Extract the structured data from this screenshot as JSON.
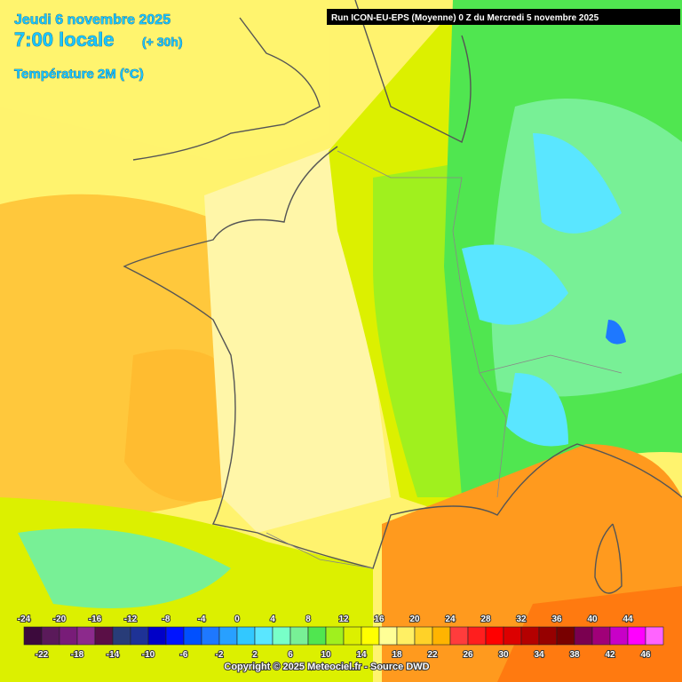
{
  "header": {
    "date": "Jeudi 6 novembre 2025",
    "time": "7:00 locale",
    "lead": "(+ 30h)",
    "parameter": "Température 2M (°C)",
    "run": "Run ICON-EU-EPS (Moyenne) 0 Z du Mercredi 5 novembre 2025"
  },
  "legend": [
    {
      "value": -24,
      "color": "#3c0a3c"
    },
    {
      "value": -22,
      "color": "#5a1a5a"
    },
    {
      "value": -20,
      "color": "#781c78"
    },
    {
      "value": -18,
      "color": "#8c2a8c"
    },
    {
      "value": -16,
      "color": "#5a0f46"
    },
    {
      "value": -14,
      "color": "#283c78"
    },
    {
      "value": -12,
      "color": "#1e3296"
    },
    {
      "value": -10,
      "color": "#0000c8"
    },
    {
      "value": -8,
      "color": "#0014ff"
    },
    {
      "value": -6,
      "color": "#0050ff"
    },
    {
      "value": -4,
      "color": "#1e78ff"
    },
    {
      "value": -2,
      "color": "#28a0ff"
    },
    {
      "value": 0,
      "color": "#32c8ff"
    },
    {
      "value": 2,
      "color": "#5ae6ff"
    },
    {
      "value": 4,
      "color": "#78ffc8"
    },
    {
      "value": 6,
      "color": "#78f096"
    },
    {
      "value": 8,
      "color": "#50e650"
    },
    {
      "value": 10,
      "color": "#a0f01e"
    },
    {
      "value": 12,
      "color": "#dcf000"
    },
    {
      "value": 14,
      "color": "#ffff00"
    },
    {
      "value": 16,
      "color": "#ffff96"
    },
    {
      "value": 18,
      "color": "#fff064"
    },
    {
      "value": 20,
      "color": "#ffd228"
    },
    {
      "value": 22,
      "color": "#ffb400"
    },
    {
      "value": 24,
      "color": "#ff3c3c"
    },
    {
      "value": 26,
      "color": "#ff1e1e"
    },
    {
      "value": 28,
      "color": "#ff0000"
    },
    {
      "value": 30,
      "color": "#dc0000"
    },
    {
      "value": 32,
      "color": "#b40000"
    },
    {
      "value": 34,
      "color": "#960000"
    },
    {
      "value": 36,
      "color": "#780000"
    },
    {
      "value": 38,
      "color": "#7a0050"
    },
    {
      "value": 40,
      "color": "#a00078"
    },
    {
      "value": 42,
      "color": "#c800c8"
    },
    {
      "value": 44,
      "color": "#ff00ff"
    },
    {
      "value": 46,
      "color": "#ff64ff"
    }
  ],
  "footer": "Copyright © 2025 Meteociel.fr - Source DWD"
}
